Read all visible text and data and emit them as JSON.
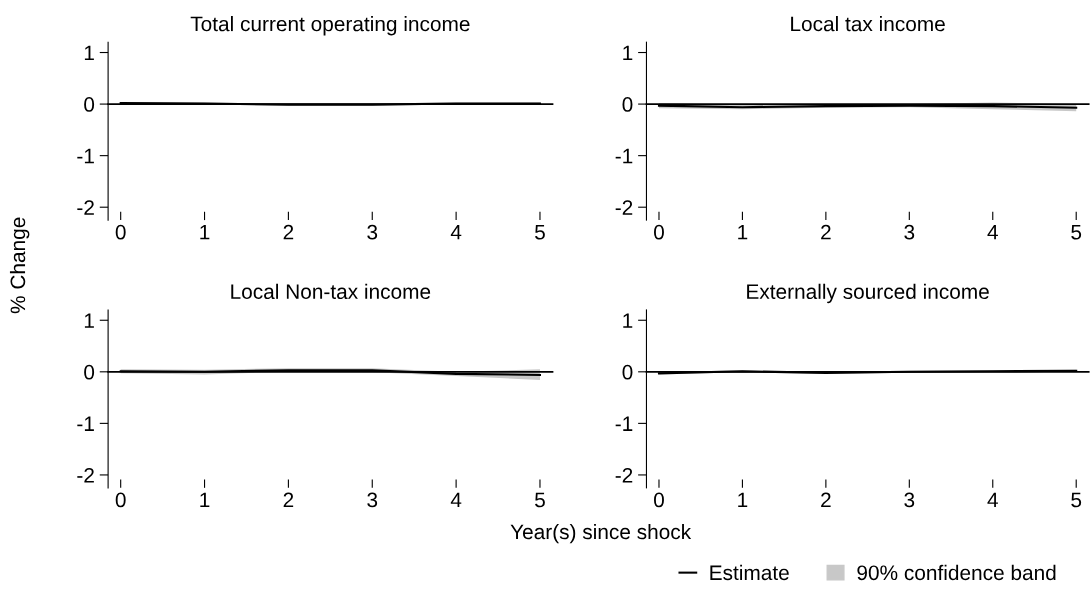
{
  "chart_data": [
    {
      "type": "line",
      "title": "Total current operating income",
      "ylabel": "% Change",
      "xlabel": "Year(s) since shock",
      "x": [
        0,
        1,
        2,
        3,
        4,
        5
      ],
      "xlim": [
        -0.15,
        5.15
      ],
      "ylim": [
        -2.25,
        1.2
      ],
      "xticks": [
        0,
        1,
        2,
        3,
        4,
        5
      ],
      "yticks": [
        -2,
        -1,
        0,
        1
      ],
      "grid": false,
      "ref_lines": [
        {
          "axis": "y",
          "value": 0,
          "color": "#000000"
        }
      ],
      "series": [
        {
          "color": "#000000",
          "values": [
            0.02,
            0.01,
            -0.01,
            -0.01,
            0.01,
            0.01
          ],
          "lower": [
            0.0,
            -0.01,
            -0.03,
            -0.03,
            -0.01,
            -0.01
          ],
          "upper": [
            0.04,
            0.03,
            0.01,
            0.01,
            0.03,
            0.03
          ]
        }
      ]
    },
    {
      "type": "line",
      "title": "Local tax income",
      "x": [
        0,
        1,
        2,
        3,
        4,
        5
      ],
      "xlim": [
        -0.15,
        5.15
      ],
      "ylim": [
        -2.25,
        1.2
      ],
      "xticks": [
        0,
        1,
        2,
        3,
        4,
        5
      ],
      "yticks": [
        -2,
        -1,
        0,
        1
      ],
      "grid": false,
      "ref_lines": [
        {
          "axis": "y",
          "value": 0,
          "color": "#000000"
        }
      ],
      "series": [
        {
          "color": "#000000",
          "values": [
            -0.03,
            -0.06,
            -0.04,
            -0.03,
            -0.04,
            -0.07
          ],
          "lower": [
            -0.08,
            -0.1,
            -0.07,
            -0.06,
            -0.1,
            -0.14
          ],
          "upper": [
            0.02,
            -0.02,
            -0.01,
            0.0,
            0.03,
            0.0
          ]
        }
      ]
    },
    {
      "type": "line",
      "title": "Local Non-tax income",
      "x": [
        0,
        1,
        2,
        3,
        4,
        5
      ],
      "xlim": [
        -0.15,
        5.15
      ],
      "ylim": [
        -2.25,
        1.2
      ],
      "xticks": [
        0,
        1,
        2,
        3,
        4,
        5
      ],
      "yticks": [
        -2,
        -1,
        0,
        1
      ],
      "grid": false,
      "ref_lines": [
        {
          "axis": "y",
          "value": 0,
          "color": "#000000"
        }
      ],
      "series": [
        {
          "color": "#000000",
          "values": [
            0.01,
            0.0,
            0.03,
            0.03,
            -0.04,
            -0.06
          ],
          "lower": [
            -0.03,
            -0.05,
            0.0,
            -0.01,
            -0.08,
            -0.16
          ],
          "upper": [
            0.05,
            0.04,
            0.07,
            0.07,
            0.0,
            0.05
          ]
        }
      ]
    },
    {
      "type": "line",
      "title": "Externally sourced income",
      "x": [
        0,
        1,
        2,
        3,
        4,
        5
      ],
      "xlim": [
        -0.15,
        5.15
      ],
      "ylim": [
        -2.25,
        1.2
      ],
      "xticks": [
        0,
        1,
        2,
        3,
        4,
        5
      ],
      "yticks": [
        -2,
        -1,
        0,
        1
      ],
      "grid": false,
      "legend": "bottom",
      "annotations": [
        "90% confidence band"
      ],
      "ref_lines": [
        {
          "axis": "y",
          "value": 0,
          "color": "#000000"
        }
      ],
      "series": [
        {
          "name": "Estimate",
          "color": "#000000",
          "values": [
            -0.03,
            0.01,
            -0.02,
            0.0,
            0.01,
            0.02
          ],
          "lower": [
            -0.05,
            -0.01,
            -0.04,
            -0.02,
            -0.01,
            0.0
          ],
          "upper": [
            -0.01,
            0.03,
            0.0,
            0.02,
            0.03,
            0.04
          ]
        }
      ]
    }
  ]
}
